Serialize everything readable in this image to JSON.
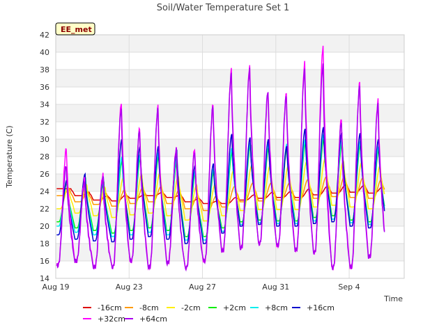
{
  "chart_data": {
    "type": "line",
    "title": "Soil/Water Temperature Set 1",
    "xlabel": "Time",
    "ylabel": "Temperature (C)",
    "badge": "EE_met",
    "ylim": [
      14,
      42
    ],
    "yticks": [
      "14",
      "16",
      "18",
      "20",
      "22",
      "24",
      "26",
      "28",
      "30",
      "32",
      "34",
      "36",
      "38",
      "40",
      "42"
    ],
    "xlim": [
      "2023-08-19",
      "2023-09-07"
    ],
    "xticks": [
      "Aug 19",
      "Aug 23",
      "Aug 27",
      "Aug 31",
      "Sep 4"
    ],
    "grid": true,
    "legend_position": "bottom",
    "x": [
      "Aug 19",
      "Aug 20",
      "Aug 21",
      "Aug 22",
      "Aug 23",
      "Aug 24",
      "Aug 25",
      "Aug 26",
      "Aug 27",
      "Aug 28",
      "Aug 29",
      "Aug 30",
      "Aug 31",
      "Sep 1",
      "Sep 2",
      "Sep 3",
      "Sep 4",
      "Sep 5"
    ],
    "series": [
      {
        "name": "-16cm",
        "color": "#dd0000",
        "min": [
          24.3,
          23.5,
          23.0,
          22.9,
          23.2,
          23.5,
          23.3,
          22.8,
          22.6,
          22.6,
          23.0,
          23.2,
          23.3,
          23.3,
          23.6,
          23.8,
          23.9,
          23.8
        ],
        "max": [
          24.3,
          23.9,
          23.5,
          23.6,
          23.6,
          23.9,
          23.6,
          23.2,
          22.9,
          23.3,
          23.6,
          23.9,
          24.0,
          24.3,
          24.6,
          24.8,
          24.7,
          24.5
        ]
      },
      {
        "name": "-8cm",
        "color": "#ff9900",
        "min": [
          23.5,
          22.8,
          22.5,
          22.3,
          22.6,
          22.8,
          22.6,
          22.0,
          21.8,
          22.2,
          22.8,
          22.9,
          23.0,
          23.0,
          23.2,
          23.4,
          23.3,
          23.2
        ],
        "max": [
          24.2,
          24.0,
          23.8,
          24.2,
          24.5,
          24.6,
          24.3,
          23.6,
          23.5,
          24.6,
          25.0,
          25.0,
          25.0,
          25.4,
          25.7,
          25.8,
          25.6,
          25.4
        ]
      },
      {
        "name": "-2cm",
        "color": "#ffee00",
        "min": [
          22.0,
          21.5,
          21.2,
          21.0,
          21.3,
          21.5,
          21.2,
          20.7,
          20.6,
          21.2,
          21.8,
          21.9,
          21.9,
          21.9,
          22.2,
          22.4,
          22.2,
          22.0
        ],
        "max": [
          24.5,
          24.8,
          24.5,
          25.6,
          26.0,
          26.2,
          25.8,
          24.8,
          24.8,
          26.4,
          27.0,
          27.0,
          27.0,
          27.5,
          27.8,
          27.6,
          27.4,
          27.0
        ]
      },
      {
        "name": "+2cm",
        "color": "#00ee00",
        "min": [
          20.5,
          19.8,
          19.5,
          19.2,
          19.5,
          19.8,
          19.5,
          18.8,
          18.8,
          19.8,
          20.5,
          20.7,
          20.6,
          20.6,
          21.0,
          21.2,
          20.7,
          20.5
        ],
        "max": [
          25.0,
          25.5,
          25.0,
          27.5,
          27.8,
          28.0,
          27.5,
          26.0,
          26.2,
          28.5,
          29.2,
          29.0,
          29.0,
          29.5,
          30.0,
          29.5,
          29.3,
          28.8
        ]
      },
      {
        "name": "+8cm",
        "color": "#00eeee",
        "min": [
          20.0,
          19.3,
          19.0,
          18.8,
          19.0,
          19.3,
          19.0,
          18.4,
          18.4,
          19.4,
          20.2,
          20.4,
          20.3,
          20.3,
          20.6,
          20.8,
          20.4,
          20.2
        ],
        "max": [
          25.2,
          25.8,
          25.2,
          28.0,
          28.3,
          28.5,
          28.0,
          26.4,
          26.6,
          29.0,
          29.6,
          29.5,
          29.5,
          30.0,
          30.6,
          30.0,
          29.8,
          29.2
        ]
      },
      {
        "name": "+16cm",
        "color": "#0000cc",
        "min": [
          19.0,
          18.5,
          18.3,
          18.2,
          18.5,
          18.8,
          18.5,
          18.0,
          18.0,
          19.2,
          20.0,
          20.2,
          20.0,
          20.0,
          20.3,
          20.5,
          20.0,
          19.8
        ],
        "max": [
          25.3,
          26.0,
          25.5,
          30.0,
          29.2,
          29.2,
          28.8,
          27.0,
          27.2,
          30.6,
          30.2,
          30.0,
          29.2,
          31.2,
          31.4,
          30.8,
          30.7,
          30.0
        ]
      },
      {
        "name": "+32cm",
        "color": "#ff00ff",
        "min": [
          15.5,
          16.0,
          15.3,
          15.3,
          16.0,
          15.3,
          15.8,
          15.2,
          16.0,
          17.2,
          17.5,
          18.0,
          17.8,
          17.3,
          17.0,
          15.2,
          15.3,
          16.5
        ],
        "max": [
          29.0,
          25.5,
          26.0,
          34.3,
          31.3,
          33.8,
          29.0,
          29.0,
          34.0,
          38.0,
          38.5,
          35.6,
          35.3,
          38.8,
          40.8,
          32.5,
          36.6,
          34.5
        ]
      },
      {
        "name": "+64cm",
        "color": "#aa00ee",
        "min": [
          15.5,
          16.0,
          15.3,
          15.3,
          16.0,
          15.3,
          15.8,
          15.2,
          16.0,
          17.2,
          17.5,
          18.0,
          17.8,
          17.3,
          17.0,
          15.2,
          15.3,
          16.5
        ],
        "max": [
          27.0,
          25.0,
          25.5,
          33.5,
          31.0,
          33.5,
          28.8,
          28.5,
          33.8,
          37.5,
          38.0,
          35.5,
          35.0,
          38.0,
          38.5,
          32.0,
          36.2,
          34.0
        ]
      }
    ]
  },
  "colors": {
    "plot_bg": "#ffffff",
    "band_bg": "#f2f2f2",
    "grid": "#dddddd",
    "badge_bg": "#ffffc8",
    "badge_border": "#000000"
  }
}
